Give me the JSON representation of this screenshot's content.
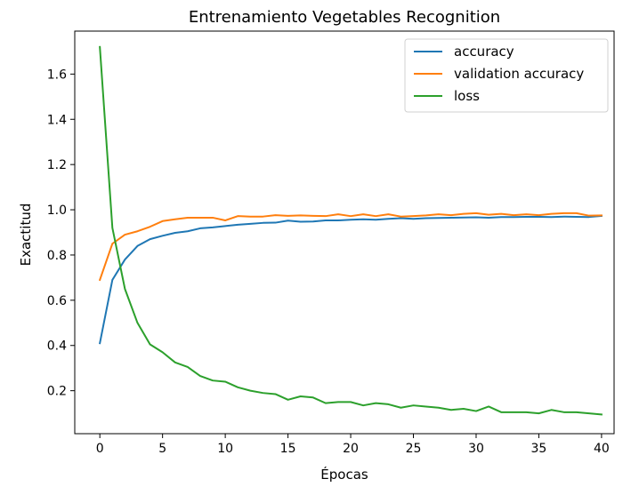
{
  "chart_data": {
    "type": "line",
    "title": "Entrenamiento Vegetables Recognition",
    "xlabel": "Épocas",
    "ylabel": "Exactitud",
    "xlim": [
      -2,
      41
    ],
    "ylim": [
      0.01,
      1.79
    ],
    "xticks": [
      0,
      5,
      10,
      15,
      20,
      25,
      30,
      35,
      40
    ],
    "yticks": [
      0.2,
      0.4,
      0.6,
      0.8,
      1.0,
      1.2,
      1.4,
      1.6
    ],
    "xtick_labels": [
      "0",
      "5",
      "10",
      "15",
      "20",
      "25",
      "30",
      "35",
      "40"
    ],
    "ytick_labels": [
      "0.2",
      "0.4",
      "0.6",
      "0.8",
      "1.0",
      "1.2",
      "1.4",
      "1.6"
    ],
    "grid": false,
    "legend_position": "top-right",
    "x": [
      0,
      1,
      2,
      3,
      4,
      5,
      6,
      7,
      8,
      9,
      10,
      11,
      12,
      13,
      14,
      15,
      16,
      17,
      18,
      19,
      20,
      21,
      22,
      23,
      24,
      25,
      26,
      27,
      28,
      29,
      30,
      31,
      32,
      33,
      34,
      35,
      36,
      37,
      38,
      39,
      40
    ],
    "series": [
      {
        "name": "accuracy",
        "color": "#1f77b4",
        "values": [
          0.41,
          0.69,
          0.78,
          0.84,
          0.87,
          0.885,
          0.898,
          0.905,
          0.918,
          0.922,
          0.928,
          0.934,
          0.938,
          0.942,
          0.943,
          0.952,
          0.947,
          0.948,
          0.953,
          0.953,
          0.956,
          0.958,
          0.956,
          0.96,
          0.963,
          0.96,
          0.963,
          0.964,
          0.965,
          0.966,
          0.967,
          0.965,
          0.968,
          0.968,
          0.969,
          0.969,
          0.968,
          0.97,
          0.969,
          0.968,
          0.973
        ]
      },
      {
        "name": "validation accuracy",
        "color": "#ff7f0e",
        "values": [
          0.69,
          0.85,
          0.89,
          0.905,
          0.925,
          0.95,
          0.958,
          0.965,
          0.965,
          0.965,
          0.953,
          0.972,
          0.97,
          0.97,
          0.976,
          0.973,
          0.975,
          0.973,
          0.972,
          0.98,
          0.972,
          0.98,
          0.972,
          0.98,
          0.97,
          0.972,
          0.975,
          0.98,
          0.976,
          0.982,
          0.985,
          0.978,
          0.982,
          0.976,
          0.98,
          0.976,
          0.982,
          0.985,
          0.985,
          0.974,
          0.975
        ]
      },
      {
        "name": "loss",
        "color": "#2ca02c",
        "values": [
          1.72,
          0.92,
          0.65,
          0.5,
          0.405,
          0.37,
          0.325,
          0.305,
          0.265,
          0.245,
          0.24,
          0.215,
          0.2,
          0.19,
          0.185,
          0.16,
          0.175,
          0.17,
          0.145,
          0.15,
          0.15,
          0.135,
          0.145,
          0.14,
          0.125,
          0.135,
          0.13,
          0.125,
          0.115,
          0.12,
          0.11,
          0.13,
          0.105,
          0.105,
          0.105,
          0.1,
          0.115,
          0.105,
          0.105,
          0.1,
          0.095
        ]
      }
    ]
  }
}
